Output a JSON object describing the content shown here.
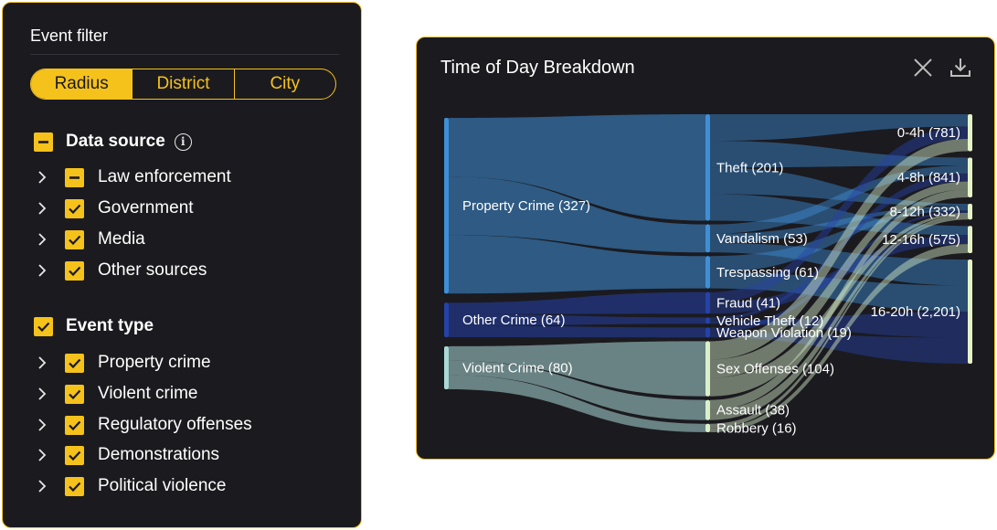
{
  "filter": {
    "title": "Event filter",
    "tabs": [
      "Radius",
      "District",
      "City"
    ],
    "active_tab": "Radius",
    "data_source": {
      "label": "Data source",
      "state": "partial",
      "items": [
        {
          "label": "Law enforcement",
          "state": "partial"
        },
        {
          "label": "Government",
          "state": "checked"
        },
        {
          "label": "Media",
          "state": "checked"
        },
        {
          "label": "Other sources",
          "state": "checked"
        }
      ]
    },
    "event_type": {
      "label": "Event type",
      "state": "checked",
      "items": [
        {
          "label": "Property crime",
          "state": "checked"
        },
        {
          "label": "Violent crime",
          "state": "checked"
        },
        {
          "label": "Regulatory offenses",
          "state": "checked"
        },
        {
          "label": "Demonstrations",
          "state": "checked"
        },
        {
          "label": "Political violence",
          "state": "checked"
        }
      ]
    }
  },
  "chart": {
    "title": "Time of Day Breakdown"
  },
  "chart_data": {
    "type": "sankey",
    "title": "Time of Day Breakdown",
    "columns": [
      [
        {
          "id": "property",
          "label": "Property Crime (327)",
          "value": 327,
          "color": "#3e8fd6"
        },
        {
          "id": "other",
          "label": "Other Crime (64)",
          "value": 64,
          "color": "#2542a8"
        },
        {
          "id": "violent",
          "label": "Violent Crime (80)",
          "value": 80,
          "color": "#a9d8d6"
        }
      ],
      [
        {
          "id": "theft",
          "label": "Theft (201)",
          "value": 201,
          "color": "#3e8fd6"
        },
        {
          "id": "vandalism",
          "label": "Vandalism (53)",
          "value": 53,
          "color": "#3e8fd6"
        },
        {
          "id": "trespassing",
          "label": "Trespassing (61)",
          "value": 61,
          "color": "#3e8fd6"
        },
        {
          "id": "fraud",
          "label": "Fraud (41)",
          "value": 41,
          "color": "#2542a8"
        },
        {
          "id": "vehicle",
          "label": "Vehicle Theft (12)",
          "value": 12,
          "color": "#2542a8"
        },
        {
          "id": "weapon",
          "label": "Weapon Violation (19)",
          "value": 19,
          "color": "#2542a8"
        },
        {
          "id": "sex",
          "label": "Sex Offenses (104)",
          "value": 104,
          "color": "#d9efc9"
        },
        {
          "id": "assault",
          "label": "Assault (38)",
          "value": 38,
          "color": "#d9efc9"
        },
        {
          "id": "robbery",
          "label": "Robbery (16)",
          "value": 16,
          "color": "#d9efc9"
        }
      ],
      [
        {
          "id": "h0",
          "label": "0-4h (781)",
          "value": 781,
          "color": "#e6f3c6"
        },
        {
          "id": "h4",
          "label": "4-8h (841)",
          "value": 841,
          "color": "#e6f3c6"
        },
        {
          "id": "h8",
          "label": "8-12h (332)",
          "value": 332,
          "color": "#e6f3c6"
        },
        {
          "id": "h12",
          "label": "12-16h (575)",
          "value": 575,
          "color": "#e6f3c6"
        },
        {
          "id": "h16",
          "label": "16-20h (2,201)",
          "value": 2201,
          "color": "#e6f3c6"
        }
      ]
    ],
    "links": [
      [
        "property",
        "theft"
      ],
      [
        "property",
        "vandalism"
      ],
      [
        "property",
        "trespassing"
      ],
      [
        "other",
        "fraud"
      ],
      [
        "other",
        "vehicle"
      ],
      [
        "other",
        "weapon"
      ],
      [
        "violent",
        "sex"
      ],
      [
        "violent",
        "assault"
      ],
      [
        "violent",
        "robbery"
      ],
      [
        "theft",
        "h0"
      ],
      [
        "theft",
        "h4"
      ],
      [
        "theft",
        "h8"
      ],
      [
        "theft",
        "h12"
      ],
      [
        "vandalism",
        "h4"
      ],
      [
        "vandalism",
        "h8"
      ],
      [
        "vandalism",
        "h16"
      ],
      [
        "trespassing",
        "h8"
      ],
      [
        "trespassing",
        "h16"
      ],
      [
        "fraud",
        "h0"
      ],
      [
        "fraud",
        "h12"
      ],
      [
        "vehicle",
        "h4"
      ],
      [
        "vehicle",
        "h16"
      ],
      [
        "weapon",
        "h8"
      ],
      [
        "weapon",
        "h16"
      ],
      [
        "sex",
        "h0"
      ],
      [
        "sex",
        "h4"
      ],
      [
        "sex",
        "h8"
      ],
      [
        "assault",
        "h4"
      ],
      [
        "assault",
        "h8"
      ],
      [
        "robbery",
        "h8"
      ],
      [
        "robbery",
        "h12"
      ]
    ]
  }
}
